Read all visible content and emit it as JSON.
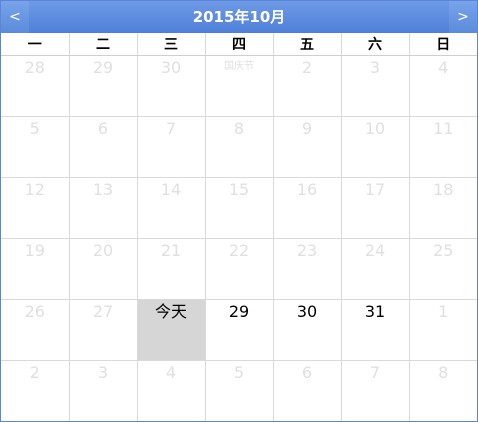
{
  "calendar": {
    "title": "2015年10月",
    "prev_label": "<",
    "next_label": ">",
    "weekdays": [
      "一",
      "二",
      "三",
      "四",
      "五",
      "六",
      "日"
    ],
    "weeks": [
      [
        "28",
        "29",
        "30",
        "国庆节",
        "2",
        "3",
        "4"
      ],
      [
        "5",
        "6",
        "7",
        "8",
        "9",
        "10",
        "11"
      ],
      [
        "12",
        "13",
        "14",
        "15",
        "16",
        "17",
        "18"
      ],
      [
        "19",
        "20",
        "21",
        "22",
        "23",
        "24",
        "25"
      ],
      [
        "26",
        "27",
        "今天",
        "29",
        "30",
        "31",
        "1"
      ],
      [
        "2",
        "3",
        "4",
        "5",
        "6",
        "7",
        "8"
      ]
    ]
  }
}
